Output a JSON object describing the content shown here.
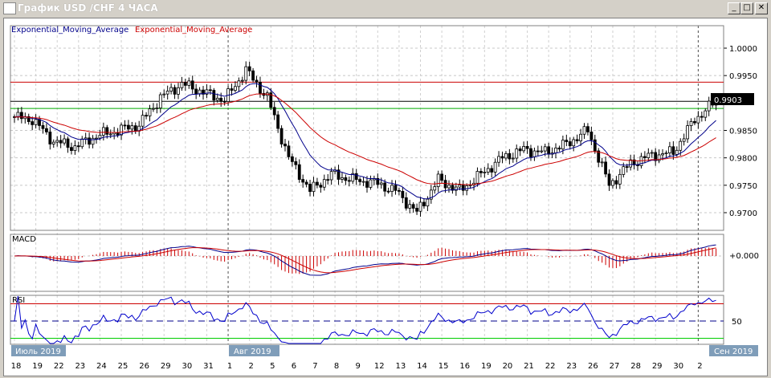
{
  "window": {
    "title": "График USD /CHF  4 ЧАСА",
    "buttons": {
      "minimize": "_",
      "maximize": "□",
      "close": "✕"
    }
  },
  "legend": {
    "ema_fast": "Exponential_Moving_Average",
    "ema_slow": "Exponential_Moving_Average"
  },
  "indicators": {
    "macd_label": "MACD",
    "macd_zero": "+0.000",
    "rsi_label": "RSI",
    "rsi_level": "50"
  },
  "price_axis": {
    "ticks": [
      "1.0000",
      "0.9950",
      "0.9850",
      "0.9800",
      "0.9750",
      "0.9700"
    ],
    "current": "0.9903"
  },
  "months": {
    "jul": "Июль 2019",
    "aug": "Авг 2019",
    "sep": "Сен 2019"
  },
  "colors": {
    "ema_fast": "#00008b",
    "ema_slow": "#cc0000",
    "resistance": "#cc0000",
    "support": "#00aa00"
  },
  "chart_data": {
    "type": "candlestick",
    "title": "USD/CHF 4H",
    "ylim": [
      0.9665,
      1.004
    ],
    "levels": {
      "resistance": 0.9938,
      "current": 0.9903,
      "support": 0.989
    },
    "days": [
      "18",
      "19",
      "22",
      "23",
      "24",
      "25",
      "26",
      "29",
      "30",
      "31",
      "1",
      "2",
      "5",
      "6",
      "7",
      "8",
      "9",
      "12",
      "13",
      "14",
      "15",
      "16",
      "19",
      "20",
      "21",
      "22",
      "23",
      "26",
      "27",
      "28",
      "29",
      "30",
      "2"
    ],
    "closes": [
      0.987,
      0.983,
      0.982,
      0.984,
      0.985,
      0.986,
      0.991,
      0.9935,
      0.992,
      0.9905,
      0.996,
      0.991,
      0.98,
      0.974,
      0.977,
      0.976,
      0.9755,
      0.974,
      0.97,
      0.976,
      0.974,
      0.977,
      0.98,
      0.9815,
      0.981,
      0.9825,
      0.985,
      0.975,
      0.979,
      0.9805,
      0.981,
      0.987,
      0.9903
    ]
  }
}
